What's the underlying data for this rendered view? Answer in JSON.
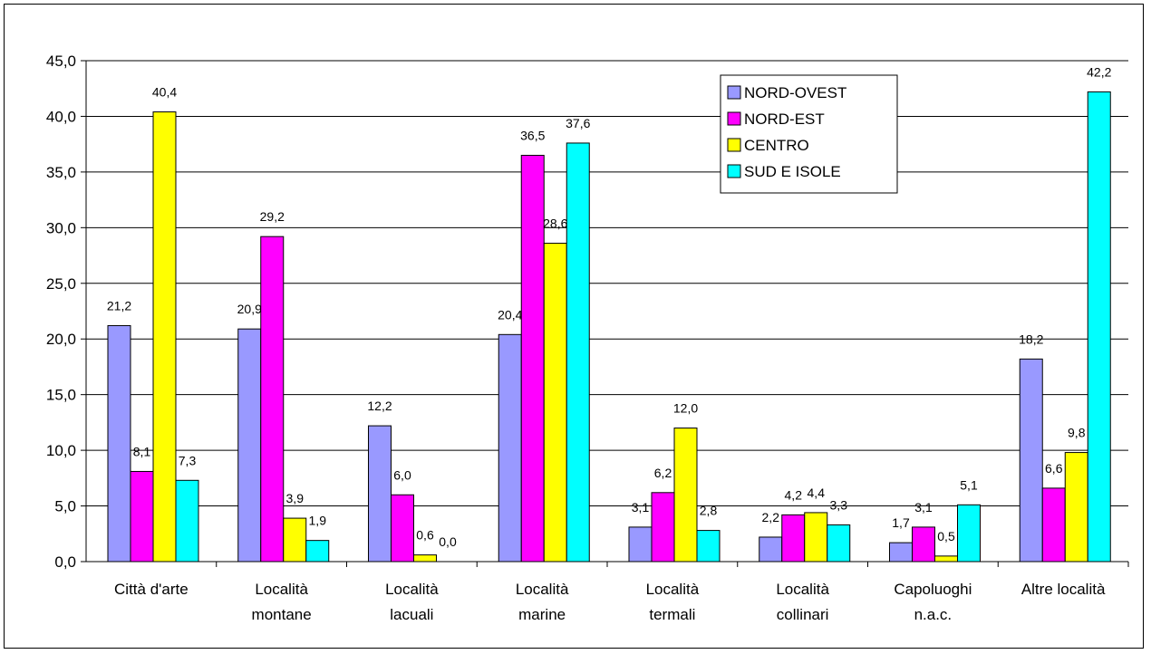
{
  "chart_data": {
    "type": "bar",
    "title": "",
    "xlabel": "",
    "ylabel": "",
    "ylim": [
      0,
      45
    ],
    "ytick_step": 5,
    "ytick_labels": [
      "0,0",
      "5,0",
      "10,0",
      "15,0",
      "20,0",
      "25,0",
      "30,0",
      "35,0",
      "40,0",
      "45,0"
    ],
    "grid": true,
    "legend_position": "top-right",
    "categories": [
      [
        "Città d'arte"
      ],
      [
        "Località",
        "montane"
      ],
      [
        "Località",
        "lacuali"
      ],
      [
        "Località",
        "marine"
      ],
      [
        "Località",
        "termali"
      ],
      [
        "Località",
        "collinari"
      ],
      [
        "Capoluoghi",
        "n.a.c."
      ],
      [
        "Altre località"
      ]
    ],
    "series": [
      {
        "name": "NORD-OVEST",
        "color": "#9999ff",
        "values": [
          21.2,
          20.9,
          12.2,
          20.4,
          3.1,
          2.2,
          1.7,
          18.2
        ],
        "labels": [
          "21,2",
          "20,9",
          "12,2",
          "20,4",
          "3,1",
          "2,2",
          "1,7",
          "18,2"
        ]
      },
      {
        "name": "NORD-EST",
        "color": "#ff00ff",
        "values": [
          8.1,
          29.2,
          6.0,
          36.5,
          6.2,
          4.2,
          3.1,
          6.6
        ],
        "labels": [
          "8,1",
          "29,2",
          "6,0",
          "36,5",
          "6,2",
          "4,2",
          "3,1",
          "6,6"
        ]
      },
      {
        "name": "CENTRO",
        "color": "#ffff00",
        "values": [
          40.4,
          3.9,
          0.6,
          28.6,
          12.0,
          4.4,
          0.5,
          9.8
        ],
        "labels": [
          "40,4",
          "3,9",
          "0,6",
          "28,6",
          "12,0",
          "4,4",
          "0,5",
          "9,8"
        ]
      },
      {
        "name": "SUD E ISOLE",
        "color": "#00ffff",
        "values": [
          7.3,
          1.9,
          0.0,
          37.6,
          2.8,
          3.3,
          5.1,
          42.2
        ],
        "labels": [
          "7,3",
          "1,9",
          "0,0",
          "37,6",
          "2,8",
          "3,3",
          "5,1",
          "42,2"
        ]
      }
    ]
  }
}
